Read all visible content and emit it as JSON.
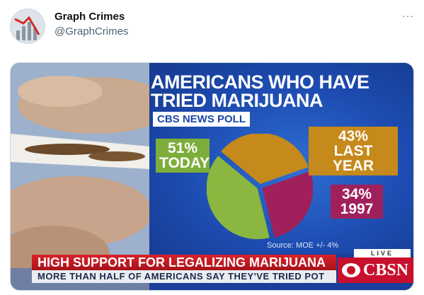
{
  "tweet": {
    "display_name": "Graph Crimes",
    "handle": "@GraphCrimes",
    "more_icon": "more-horizontal-icon",
    "more_label": "···"
  },
  "graphic": {
    "title_line1": "AMERICANS WHO HAVE",
    "title_line2": "TRIED MARIJUANA",
    "subtitle": "CBS NEWS POLL",
    "source": "Source: MOE +/- 4%"
  },
  "chart_data": {
    "type": "pie",
    "title": "AMERICANS WHO HAVE TRIED MARIJUANA",
    "subtitle": "CBS NEWS POLL",
    "slices": [
      {
        "label": "TODAY",
        "value": 51,
        "value_label": "51%",
        "color": "#8bb63f"
      },
      {
        "label": "LAST YEAR",
        "value": 43,
        "value_label": "43%",
        "color": "#c6891c"
      },
      {
        "label": "1997",
        "value": 34,
        "value_label": "34%",
        "color": "#a0205c"
      }
    ],
    "annotation": "Source: MOE +/- 4%"
  },
  "lower_third": {
    "headline": "HIGH SUPPORT FOR LEGALIZING MARIJUANA",
    "ticker": "MORE THAN HALF OF AMERICANS SAY THEY'VE TRIED POT",
    "live": "LIVE",
    "network": "CBSN"
  },
  "colors": {
    "today": "#8bb63f",
    "last_year": "#c6891c",
    "y1997": "#a0205c",
    "headline_red": "#d9222a",
    "background_blue": "#1d4bb0"
  }
}
